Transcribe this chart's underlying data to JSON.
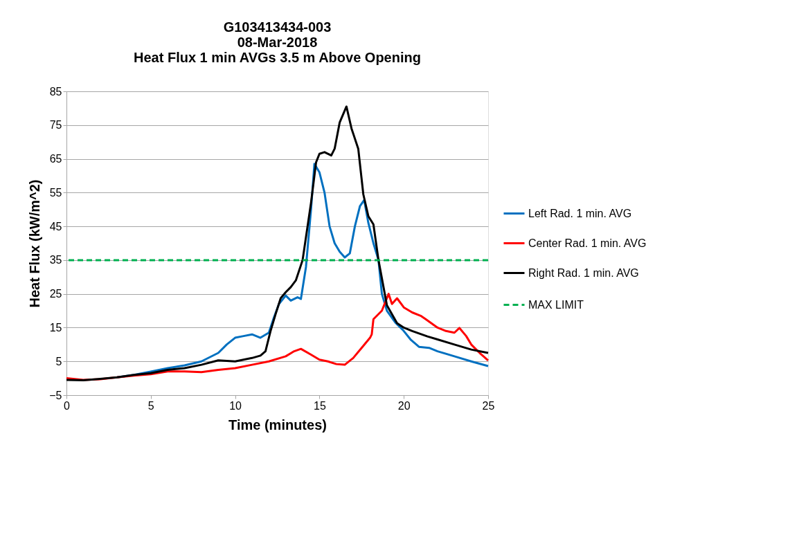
{
  "chart_data": {
    "type": "line",
    "title": [
      "G103413434-003",
      "08-Mar-2018",
      "Heat Flux 1 min AVGs 3.5 m Above Opening"
    ],
    "xlabel": "Time (minutes)",
    "ylabel": "Heat Flux (kW/m^2)",
    "xlim": [
      0,
      25
    ],
    "xticks": [
      0,
      5,
      10,
      15,
      20,
      25
    ],
    "ylim": [
      -5,
      85
    ],
    "yticks": [
      -5,
      5,
      15,
      25,
      35,
      45,
      55,
      65,
      75,
      85
    ],
    "grid": "y",
    "legend": "right",
    "line_style": "solid",
    "marker": "none",
    "series": [
      {
        "name": "Left Rad. 1 min. AVG",
        "color": "#0070c0",
        "x": [
          3,
          4,
          5,
          6,
          7,
          8,
          9,
          9.5,
          10,
          10.5,
          11,
          11.5,
          12,
          12.3,
          12.6,
          13,
          13.3,
          13.7,
          13.9,
          14.2,
          14.5,
          14.7,
          15,
          15.3,
          15.6,
          15.9,
          16.2,
          16.5,
          16.8,
          17.1,
          17.4,
          17.65,
          17.9,
          18.2,
          18.5,
          18.7,
          19,
          19.5,
          19.95,
          20.4,
          20.9,
          21.5,
          22,
          23,
          24,
          25
        ],
        "values": [
          0.3,
          1,
          2,
          3,
          3.8,
          5,
          7.5,
          10,
          12,
          12.5,
          13,
          12,
          13.5,
          18,
          22,
          24.5,
          23,
          24,
          23.5,
          33,
          50,
          63.5,
          61,
          55,
          45,
          40,
          37.5,
          35.8,
          37,
          45,
          51,
          52.8,
          46,
          40,
          35,
          25,
          20,
          16.5,
          14.3,
          11.5,
          9.3,
          9,
          8,
          6.5,
          5,
          3.6
        ]
      },
      {
        "name": "Center Rad. 1 min. AVG",
        "color": "#ff0000",
        "x": [
          0,
          1,
          2,
          3,
          4,
          5,
          6,
          7,
          8,
          9,
          10,
          11,
          12,
          13,
          13.5,
          13.9,
          14.5,
          15,
          15.5,
          16,
          16.5,
          17,
          17.5,
          18,
          18.1,
          18.2,
          18.7,
          19.1,
          19.3,
          19.6,
          20,
          20.5,
          21,
          21.3,
          22,
          22.5,
          23,
          23.3,
          23.7,
          24,
          24.5,
          25
        ],
        "values": [
          0,
          -0.5,
          -0.3,
          0.3,
          0.8,
          1.2,
          2,
          2,
          1.8,
          2.5,
          3,
          4,
          5,
          6.5,
          8,
          8.7,
          7,
          5.5,
          5,
          4.2,
          4,
          6,
          9,
          12,
          13,
          17.5,
          20,
          25,
          22,
          23.7,
          21,
          19.5,
          18.5,
          17.5,
          15,
          14,
          13.5,
          14.9,
          12.5,
          10,
          7.5,
          5.3
        ]
      },
      {
        "name": "Right Rad. 1 min. AVG",
        "color": "#000000",
        "x": [
          0,
          1,
          2,
          3,
          4,
          5,
          6,
          7,
          8,
          9,
          10,
          10.5,
          11,
          11.5,
          11.8,
          12.1,
          12.4,
          12.7,
          13,
          13.3,
          13.6,
          14,
          14.5,
          14.8,
          15,
          15.3,
          15.7,
          15.9,
          16.2,
          16.6,
          16.9,
          17.3,
          17.6,
          17.9,
          18.2,
          18.5,
          19,
          19.6,
          20,
          20.5,
          21.4,
          22,
          23,
          24,
          25
        ],
        "values": [
          -0.5,
          -0.6,
          -0.2,
          0.3,
          1,
          1.5,
          2.5,
          3,
          4,
          5.3,
          5,
          5.5,
          6,
          6.7,
          8,
          14,
          19,
          23.7,
          25.5,
          27,
          29,
          35,
          52,
          64,
          66.5,
          67,
          66,
          68,
          75.8,
          80.5,
          74,
          68,
          54.5,
          48,
          45.6,
          35,
          21.6,
          16.3,
          15,
          14,
          12.4,
          11.5,
          10,
          8.5,
          7.5
        ]
      }
    ],
    "ref_lines": [
      {
        "axis": "y",
        "value": 35,
        "label": "MAX LIMIT",
        "color": "#00b050",
        "line_style": "dashed"
      }
    ]
  }
}
